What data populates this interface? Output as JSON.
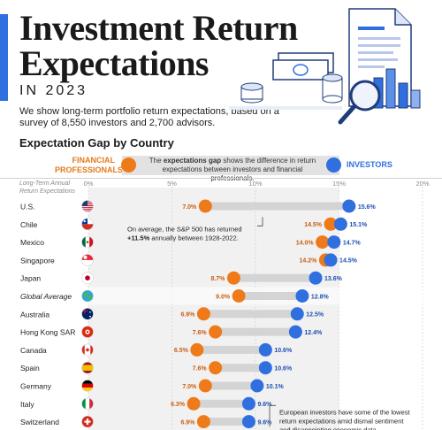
{
  "header": {
    "title_line1": "Investment Return",
    "title_line2": "Expectations",
    "subtitle": "IN 2023",
    "description": "We show long-term portfolio return expectations, based on a survey of 8,550 investors and 2,700 advisors."
  },
  "section_title": "Expectation Gap by Country",
  "legend": {
    "left_label_1": "FINANCIAL",
    "left_label_2": "PROFESSIONALS",
    "right_label": "INVESTORS",
    "note_bold": "expectations gap",
    "note_before": "The ",
    "note_after": " shows the difference in return expectations between investors and financial professionals."
  },
  "chart_data": {
    "type": "dot-range",
    "title": "Expectation Gap by Country",
    "ylabel": "Long-Term Annual Return Expectations",
    "xlim": [
      0,
      20
    ],
    "xticks": [
      0,
      5,
      10,
      15,
      20
    ],
    "xtick_labels": [
      "0%",
      "5%",
      "10%",
      "15%",
      "20%"
    ],
    "series": [
      {
        "name": "Financial Professionals",
        "color": "#ee7a1a"
      },
      {
        "name": "Investors",
        "color": "#2f6fe0"
      }
    ],
    "rows": [
      {
        "country": "U.S.",
        "flag": "us",
        "professionals": 7.0,
        "investors": 15.6,
        "pro_label": "7.0%",
        "inv_label": "15.6%",
        "italic": false
      },
      {
        "country": "Chile",
        "flag": "cl",
        "professionals": 14.5,
        "investors": 15.1,
        "pro_label": "14.5%",
        "inv_label": "15.1%",
        "italic": false
      },
      {
        "country": "Mexico",
        "flag": "mx",
        "professionals": 14.0,
        "investors": 14.7,
        "pro_label": "14.0%",
        "inv_label": "14.7%",
        "italic": false
      },
      {
        "country": "Singapore",
        "flag": "sg",
        "professionals": 14.2,
        "investors": 14.5,
        "pro_label": "14.2%",
        "inv_label": "14.5%",
        "italic": false
      },
      {
        "country": "Japan",
        "flag": "jp",
        "professionals": 8.7,
        "investors": 13.6,
        "pro_label": "8.7%",
        "inv_label": "13.6%",
        "italic": false
      },
      {
        "country": "Global Average",
        "flag": "globe",
        "professionals": 9.0,
        "investors": 12.8,
        "pro_label": "9.0%",
        "inv_label": "12.8%",
        "italic": true
      },
      {
        "country": "Australia",
        "flag": "au",
        "professionals": 6.9,
        "investors": 12.5,
        "pro_label": "6.9%",
        "inv_label": "12.5%",
        "italic": false
      },
      {
        "country": "Hong Kong SAR",
        "flag": "hk",
        "professionals": 7.6,
        "investors": 12.4,
        "pro_label": "7.6%",
        "inv_label": "12.4%",
        "italic": false
      },
      {
        "country": "Canada",
        "flag": "ca",
        "professionals": 6.5,
        "investors": 10.6,
        "pro_label": "6.5%",
        "inv_label": "10.6%",
        "italic": false
      },
      {
        "country": "Spain",
        "flag": "es",
        "professionals": 7.6,
        "investors": 10.6,
        "pro_label": "7.6%",
        "inv_label": "10.6%",
        "italic": false
      },
      {
        "country": "Germany",
        "flag": "de",
        "professionals": 7.0,
        "investors": 10.1,
        "pro_label": "7.0%",
        "inv_label": "10.1%",
        "italic": false
      },
      {
        "country": "Italy",
        "flag": "it",
        "professionals": 6.3,
        "investors": 9.6,
        "pro_label": "6.3%",
        "inv_label": "9.6%",
        "italic": false
      },
      {
        "country": "Switzerland",
        "flag": "ch",
        "professionals": 6.9,
        "investors": 9.6,
        "pro_label": "6.9%",
        "inv_label": "9.6%",
        "italic": false
      }
    ],
    "annotations": [
      {
        "row": 1,
        "lines": [
          "On average, the S&P 500 has returned",
          "+11.5% annually between 1928-2022."
        ],
        "bold_prefix": "+11.5%"
      },
      {
        "row": 11,
        "lines": [
          "European investors have some of the lowest",
          "return expectations amid dismal sentiment",
          "and disappointing economic data."
        ],
        "bold_prefix": ""
      }
    ]
  }
}
